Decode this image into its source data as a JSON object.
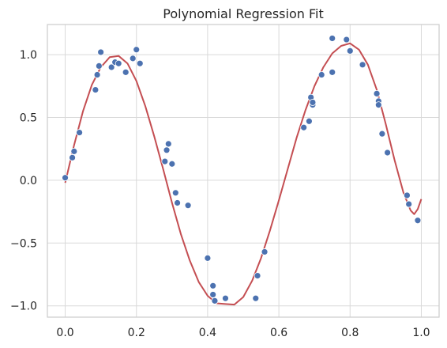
{
  "chart_data": {
    "type": "scatter",
    "title": "Polynomial Regression Fit",
    "xlabel": "",
    "ylabel": "",
    "xlim": [
      -0.05,
      1.05
    ],
    "ylim": [
      -1.09,
      1.24
    ],
    "x_ticks": [
      0.0,
      0.2,
      0.4,
      0.6,
      0.8,
      1.0
    ],
    "x_tick_labels": [
      "0.0",
      "0.2",
      "0.4",
      "0.6",
      "0.8",
      "1.0"
    ],
    "y_ticks": [
      -1.0,
      -0.5,
      0.0,
      0.5,
      1.0
    ],
    "y_tick_labels": [
      "−1.0",
      "−0.5",
      "0.0",
      "0.5",
      "1.0"
    ],
    "grid": true,
    "legend": "none",
    "series": [
      {
        "kind": "scatter",
        "color": "#4c72b0",
        "points": [
          [
            0.0,
            0.02
          ],
          [
            0.02,
            0.18
          ],
          [
            0.025,
            0.23
          ],
          [
            0.04,
            0.38
          ],
          [
            0.085,
            0.72
          ],
          [
            0.09,
            0.84
          ],
          [
            0.095,
            0.91
          ],
          [
            0.1,
            1.02
          ],
          [
            0.13,
            0.9
          ],
          [
            0.14,
            0.94
          ],
          [
            0.15,
            0.93
          ],
          [
            0.17,
            0.86
          ],
          [
            0.19,
            0.97
          ],
          [
            0.2,
            1.04
          ],
          [
            0.21,
            0.93
          ],
          [
            0.28,
            0.15
          ],
          [
            0.285,
            0.24
          ],
          [
            0.29,
            0.29
          ],
          [
            0.3,
            0.13
          ],
          [
            0.31,
            -0.1
          ],
          [
            0.315,
            -0.18
          ],
          [
            0.345,
            -0.2
          ],
          [
            0.4,
            -0.62
          ],
          [
            0.415,
            -0.84
          ],
          [
            0.415,
            -0.91
          ],
          [
            0.42,
            -0.96
          ],
          [
            0.45,
            -0.94
          ],
          [
            0.535,
            -0.94
          ],
          [
            0.54,
            -0.76
          ],
          [
            0.56,
            -0.57
          ],
          [
            0.67,
            0.42
          ],
          [
            0.685,
            0.47
          ],
          [
            0.69,
            0.66
          ],
          [
            0.695,
            0.6
          ],
          [
            0.695,
            0.62
          ],
          [
            0.72,
            0.84
          ],
          [
            0.75,
            0.86
          ],
          [
            0.75,
            1.13
          ],
          [
            0.79,
            1.12
          ],
          [
            0.8,
            1.03
          ],
          [
            0.835,
            0.92
          ],
          [
            0.875,
            0.69
          ],
          [
            0.88,
            0.63
          ],
          [
            0.88,
            0.6
          ],
          [
            0.89,
            0.37
          ],
          [
            0.905,
            0.22
          ],
          [
            0.96,
            -0.12
          ],
          [
            0.965,
            -0.19
          ],
          [
            0.99,
            -0.32
          ]
        ]
      },
      {
        "kind": "line",
        "color": "#c44e52",
        "points": [
          [
            0.0,
            -0.02
          ],
          [
            0.025,
            0.28
          ],
          [
            0.05,
            0.55
          ],
          [
            0.075,
            0.76
          ],
          [
            0.1,
            0.9
          ],
          [
            0.125,
            0.98
          ],
          [
            0.15,
            0.99
          ],
          [
            0.175,
            0.93
          ],
          [
            0.2,
            0.79
          ],
          [
            0.225,
            0.59
          ],
          [
            0.25,
            0.35
          ],
          [
            0.275,
            0.09
          ],
          [
            0.3,
            -0.18
          ],
          [
            0.325,
            -0.43
          ],
          [
            0.35,
            -0.64
          ],
          [
            0.375,
            -0.81
          ],
          [
            0.4,
            -0.92
          ],
          [
            0.425,
            -0.98
          ],
          [
            0.45,
            -0.985
          ],
          [
            0.475,
            -0.99
          ],
          [
            0.5,
            -0.93
          ],
          [
            0.525,
            -0.8
          ],
          [
            0.55,
            -0.62
          ],
          [
            0.575,
            -0.4
          ],
          [
            0.6,
            -0.16
          ],
          [
            0.625,
            0.09
          ],
          [
            0.65,
            0.34
          ],
          [
            0.675,
            0.56
          ],
          [
            0.7,
            0.75
          ],
          [
            0.725,
            0.9
          ],
          [
            0.75,
            1.01
          ],
          [
            0.775,
            1.07
          ],
          [
            0.8,
            1.09
          ],
          [
            0.825,
            1.04
          ],
          [
            0.85,
            0.92
          ],
          [
            0.875,
            0.72
          ],
          [
            0.9,
            0.45
          ],
          [
            0.925,
            0.16
          ],
          [
            0.95,
            -0.1
          ],
          [
            0.97,
            -0.24
          ],
          [
            0.98,
            -0.27
          ],
          [
            0.99,
            -0.23
          ],
          [
            1.0,
            -0.15
          ]
        ]
      }
    ]
  }
}
